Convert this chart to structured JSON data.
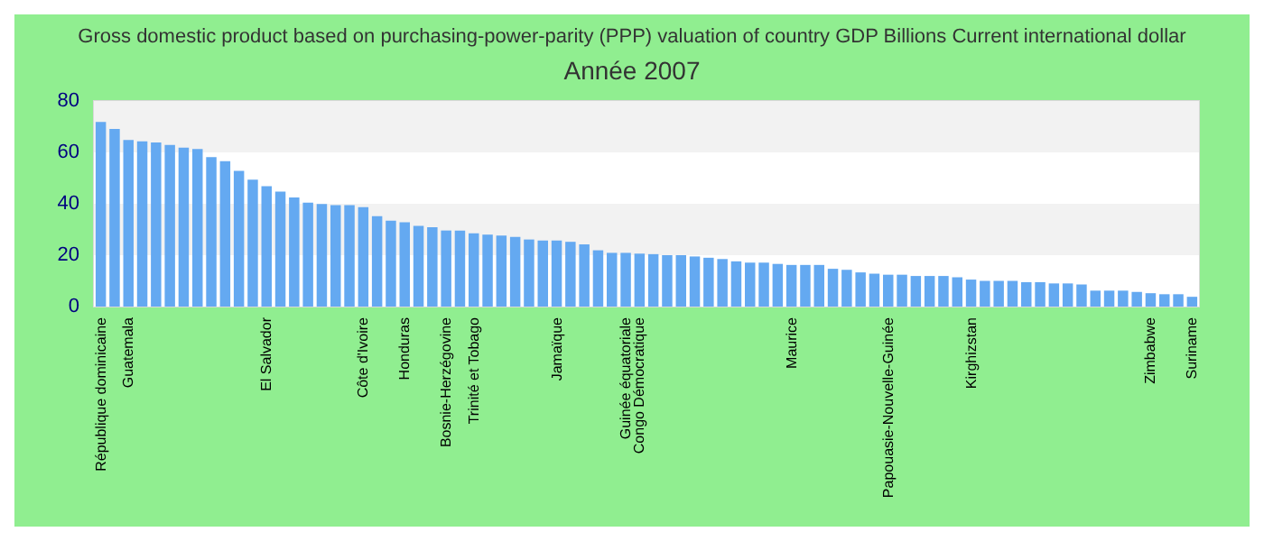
{
  "chart_data": {
    "type": "bar",
    "title": "Gross domestic product based on purchasing-power-parity (PPP) valuation of country GDP Billions Current international dollar",
    "subtitle": "Année 2007",
    "categories": [
      "République dominicaine",
      null,
      "Guatemala",
      null,
      null,
      null,
      null,
      null,
      null,
      null,
      null,
      null,
      "El Salvador",
      null,
      null,
      null,
      null,
      null,
      null,
      "Côte d'Ivoire",
      null,
      null,
      "Honduras",
      null,
      null,
      "Bosnie-Herzégovine",
      null,
      "Trinité et Tobago",
      null,
      null,
      null,
      null,
      null,
      "Jamaïque",
      null,
      null,
      null,
      null,
      "Guinée équatoriale",
      "Congo Démocratique",
      null,
      null,
      null,
      null,
      null,
      null,
      null,
      null,
      null,
      null,
      "Maurice",
      null,
      null,
      null,
      null,
      null,
      null,
      "Papouasie-Nouvelle-Guinée",
      null,
      null,
      null,
      null,
      null,
      "Kirghizstan",
      null,
      null,
      null,
      null,
      null,
      null,
      null,
      null,
      null,
      null,
      null,
      null,
      "Zimbabwe",
      null,
      null,
      "Suriname"
    ],
    "values": [
      71.8,
      69.1,
      64.8,
      64.3,
      63.9,
      62.9,
      61.8,
      61.3,
      58.2,
      56.6,
      52.8,
      49.4,
      46.8,
      44.7,
      42.5,
      40.4,
      39.9,
      39.5,
      39.5,
      38.7,
      35.2,
      33.4,
      32.8,
      31.4,
      30.9,
      29.6,
      29.6,
      28.5,
      28.0,
      27.6,
      27.1,
      26.1,
      25.7,
      25.7,
      25.2,
      24.2,
      21.9,
      20.9,
      20.9,
      20.6,
      20.4,
      20.0,
      20.0,
      19.5,
      19.0,
      18.5,
      17.6,
      17.1,
      17.1,
      16.6,
      16.2,
      16.2,
      16.2,
      14.7,
      14.3,
      13.3,
      12.8,
      12.4,
      12.4,
      11.9,
      11.9,
      11.9,
      11.4,
      10.5,
      10.0,
      10.0,
      10.0,
      9.5,
      9.5,
      9.0,
      9.0,
      8.6,
      6.2,
      6.2,
      6.2,
      5.7,
      5.2,
      4.8,
      4.8,
      3.8
    ],
    "color": "#64a9f1",
    "ylim": [
      0,
      80
    ],
    "yticks": [
      0,
      20,
      40,
      60,
      80
    ],
    "grid": false
  }
}
